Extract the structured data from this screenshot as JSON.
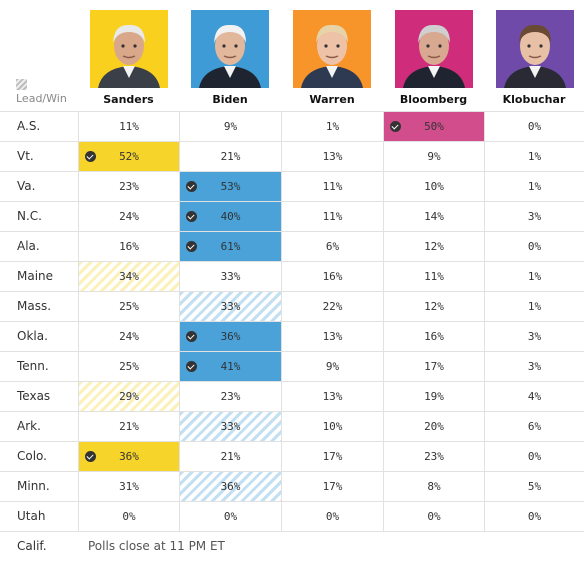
{
  "legend": {
    "label": "Lead/Win"
  },
  "candidates": [
    {
      "name": "Sanders",
      "color": "#f7d42a",
      "bg": "#f8d01d",
      "face": "#d9a88a",
      "hair": "#e9e9e9",
      "suit": "#3a3f48"
    },
    {
      "name": "Biden",
      "color": "#4aa2d9",
      "bg": "#3f9bd6",
      "face": "#e2b89c",
      "hair": "#f2f2f2",
      "suit": "#1f2530"
    },
    {
      "name": "Warren",
      "color": "#f39a35",
      "bg": "#f7942a",
      "face": "#eec2a7",
      "hair": "#e7d3a7",
      "suit": "#2d3a52"
    },
    {
      "name": "Bloomberg",
      "color": "#d14d8b",
      "bg": "#cf2d7b",
      "face": "#d8a890",
      "hair": "#cfcfcf",
      "suit": "#1f2430"
    },
    {
      "name": "Klobuchar",
      "color": "#7c55b0",
      "bg": "#6f4aa8",
      "face": "#e8c0a5",
      "hair": "#6a4a32",
      "suit": "#2a2a35"
    }
  ],
  "chart_data": {
    "type": "table",
    "title": "",
    "columns": [
      "Sanders",
      "Biden",
      "Warren",
      "Bloomberg",
      "Klobuchar"
    ],
    "rows": [
      {
        "state": "A.S.",
        "values": [
          "11%",
          "9%",
          "1%",
          "50%",
          "0%"
        ],
        "leader": 3,
        "status": "win"
      },
      {
        "state": "Vt.",
        "values": [
          "52%",
          "21%",
          "13%",
          "9%",
          "1%"
        ],
        "leader": 0,
        "status": "win"
      },
      {
        "state": "Va.",
        "values": [
          "23%",
          "53%",
          "11%",
          "10%",
          "1%"
        ],
        "leader": 1,
        "status": "win"
      },
      {
        "state": "N.C.",
        "values": [
          "24%",
          "40%",
          "11%",
          "14%",
          "3%"
        ],
        "leader": 1,
        "status": "win"
      },
      {
        "state": "Ala.",
        "values": [
          "16%",
          "61%",
          "6%",
          "12%",
          "0%"
        ],
        "leader": 1,
        "status": "win"
      },
      {
        "state": "Maine",
        "values": [
          "34%",
          "33%",
          "16%",
          "11%",
          "1%"
        ],
        "leader": 0,
        "status": "lead"
      },
      {
        "state": "Mass.",
        "values": [
          "25%",
          "33%",
          "22%",
          "12%",
          "1%"
        ],
        "leader": 1,
        "status": "lead"
      },
      {
        "state": "Okla.",
        "values": [
          "24%",
          "36%",
          "13%",
          "16%",
          "3%"
        ],
        "leader": 1,
        "status": "win"
      },
      {
        "state": "Tenn.",
        "values": [
          "25%",
          "41%",
          "9%",
          "17%",
          "3%"
        ],
        "leader": 1,
        "status": "win"
      },
      {
        "state": "Texas",
        "values": [
          "29%",
          "23%",
          "13%",
          "19%",
          "4%"
        ],
        "leader": 0,
        "status": "lead"
      },
      {
        "state": "Ark.",
        "values": [
          "21%",
          "33%",
          "10%",
          "20%",
          "6%"
        ],
        "leader": 1,
        "status": "lead"
      },
      {
        "state": "Colo.",
        "values": [
          "36%",
          "21%",
          "17%",
          "23%",
          "0%"
        ],
        "leader": 0,
        "status": "win"
      },
      {
        "state": "Minn.",
        "values": [
          "31%",
          "36%",
          "17%",
          "8%",
          "5%"
        ],
        "leader": 1,
        "status": "lead"
      },
      {
        "state": "Utah",
        "values": [
          "0%",
          "0%",
          "0%",
          "0%",
          "0%"
        ],
        "leader": null,
        "status": "none"
      },
      {
        "state": "Calif.",
        "note": "Polls close at 11 PM ET"
      }
    ]
  }
}
